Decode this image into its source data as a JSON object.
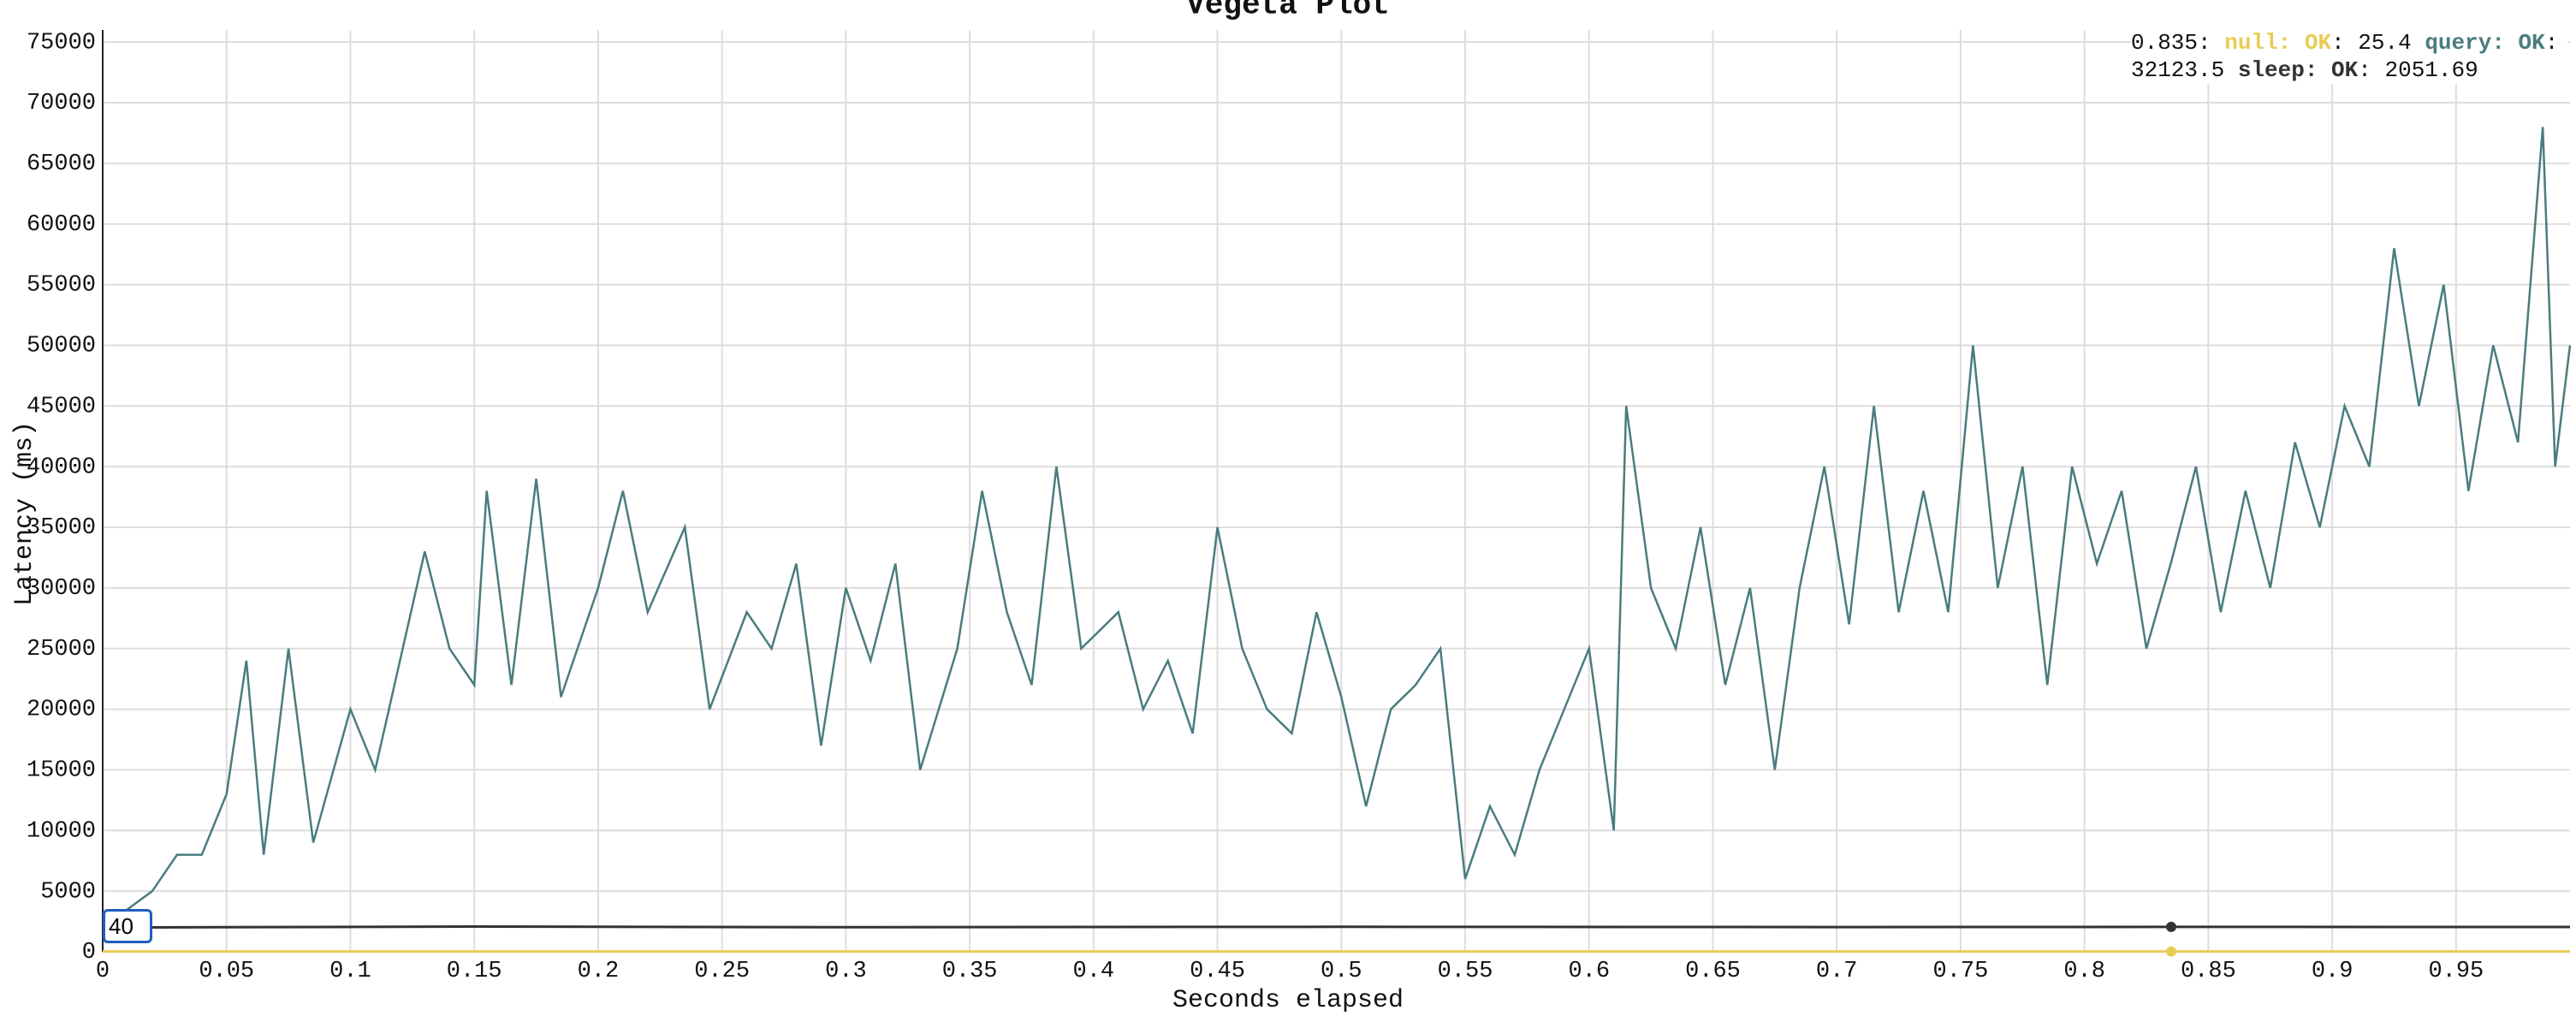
{
  "chart_data": {
    "type": "line",
    "title": "Vegeta Plot",
    "x_label": "Seconds elapsed",
    "y_label": "Latency (ms)",
    "xlim": [
      0,
      0.996
    ],
    "ylim": [
      0,
      76000
    ],
    "xticks": [
      0,
      0.05,
      0.1,
      0.15,
      0.2,
      0.25,
      0.3,
      0.35,
      0.4,
      0.45,
      0.5,
      0.55,
      0.6,
      0.65,
      0.7,
      0.75,
      0.8,
      0.85,
      0.9,
      0.95
    ],
    "yticks": [
      0,
      5000,
      10000,
      15000,
      20000,
      25000,
      30000,
      35000,
      40000,
      45000,
      50000,
      55000,
      60000,
      65000,
      70000,
      75000
    ],
    "grid": true,
    "legend": "top-right",
    "highlight_x": 0.835,
    "series": [
      {
        "name": "null: OK",
        "color": "#e8cc55",
        "legend_value": "25.4",
        "x": [
          0,
          0.2,
          0.4,
          0.6,
          0.835,
          0.996
        ],
        "values": [
          25,
          26,
          25,
          25,
          25.4,
          25
        ]
      },
      {
        "name": "query: OK",
        "color": "#4a7c7e",
        "legend_value": "32123.5",
        "x": [
          0,
          0.02,
          0.03,
          0.04,
          0.05,
          0.058,
          0.065,
          0.075,
          0.085,
          0.1,
          0.11,
          0.12,
          0.13,
          0.14,
          0.15,
          0.155,
          0.165,
          0.175,
          0.185,
          0.2,
          0.21,
          0.22,
          0.235,
          0.245,
          0.26,
          0.27,
          0.28,
          0.29,
          0.3,
          0.31,
          0.32,
          0.33,
          0.345,
          0.355,
          0.365,
          0.375,
          0.385,
          0.395,
          0.41,
          0.42,
          0.43,
          0.44,
          0.45,
          0.46,
          0.47,
          0.48,
          0.49,
          0.5,
          0.51,
          0.52,
          0.53,
          0.54,
          0.55,
          0.56,
          0.57,
          0.58,
          0.59,
          0.6,
          0.61,
          0.615,
          0.625,
          0.635,
          0.645,
          0.655,
          0.665,
          0.675,
          0.685,
          0.695,
          0.705,
          0.715,
          0.725,
          0.735,
          0.745,
          0.755,
          0.765,
          0.775,
          0.785,
          0.795,
          0.805,
          0.815,
          0.825,
          0.835,
          0.845,
          0.855,
          0.865,
          0.875,
          0.885,
          0.895,
          0.905,
          0.915,
          0.925,
          0.935,
          0.945,
          0.955,
          0.965,
          0.975,
          0.985,
          0.99,
          0.996
        ],
        "values": [
          2000,
          5000,
          8000,
          8000,
          13000,
          24000,
          8000,
          25000,
          9000,
          20000,
          15000,
          24000,
          33000,
          25000,
          22000,
          38000,
          22000,
          39000,
          21000,
          30000,
          38000,
          28000,
          35000,
          20000,
          28000,
          25000,
          32000,
          17000,
          30000,
          24000,
          32000,
          15000,
          25000,
          38000,
          28000,
          22000,
          40000,
          25000,
          28000,
          20000,
          24000,
          18000,
          35000,
          25000,
          20000,
          18000,
          28000,
          21000,
          12000,
          20000,
          22000,
          25000,
          6000,
          12000,
          8000,
          15000,
          20000,
          25000,
          10000,
          45000,
          30000,
          25000,
          35000,
          22000,
          30000,
          15000,
          30000,
          40000,
          27000,
          45000,
          28000,
          38000,
          28000,
          50000,
          30000,
          40000,
          22000,
          40000,
          32000,
          38000,
          25000,
          32123.5,
          40000,
          28000,
          38000,
          30000,
          42000,
          35000,
          45000,
          40000,
          58000,
          45000,
          55000,
          38000,
          50000,
          42000,
          68000,
          40000,
          50000
        ]
      },
      {
        "name": "sleep: OK",
        "color": "#333333",
        "legend_value": "2051.69",
        "x": [
          0,
          0.15,
          0.3,
          0.5,
          0.7,
          0.835,
          0.996
        ],
        "values": [
          2000,
          2080,
          2030,
          2060,
          2040,
          2051.69,
          2050
        ]
      }
    ]
  },
  "roll_period": 40
}
